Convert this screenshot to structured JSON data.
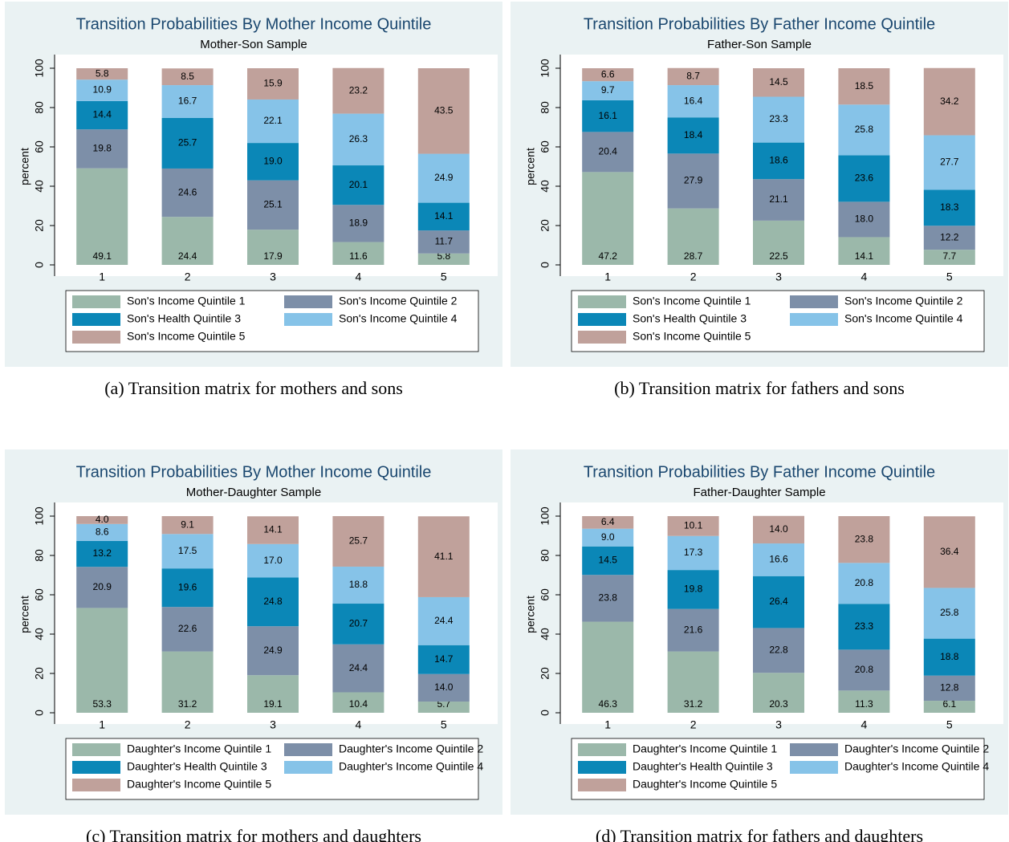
{
  "chart_data": [
    {
      "type": "bar",
      "title": "Transition Probabilities By Mother Income Quintile",
      "subtitle": "Mother-Son Sample",
      "ylabel": "percent",
      "caption": "(a) Transition matrix for mothers and sons",
      "categories": [
        "1",
        "2",
        "3",
        "4",
        "5"
      ],
      "ylim": [
        0,
        100
      ],
      "yticks": [
        0,
        20,
        40,
        60,
        80,
        100
      ],
      "stacked": true,
      "series": [
        {
          "name": "Son's Income Quintile 1",
          "color": "#9bb8aa",
          "values": [
            49.1,
            24.4,
            17.9,
            11.6,
            5.8
          ]
        },
        {
          "name": "Son's Income Quintile 2",
          "color": "#7d8fa8",
          "values": [
            19.8,
            24.6,
            25.1,
            18.9,
            11.7
          ]
        },
        {
          "name": "Son's Health Quintile 3",
          "color": "#0b87b7",
          "values": [
            14.4,
            25.7,
            19.0,
            20.1,
            14.1
          ],
          "value_labels": [
            "14.4",
            "25.7",
            "19.0",
            "20.1",
            "14.1"
          ]
        },
        {
          "name": "Son's Income Quintile 4",
          "color": "#86c3e8",
          "values": [
            10.9,
            16.7,
            22.1,
            26.3,
            24.9
          ]
        },
        {
          "name": "Son's Income Quintile 5",
          "color": "#c0a19b",
          "values": [
            5.8,
            8.5,
            15.9,
            23.2,
            43.5
          ]
        }
      ]
    },
    {
      "type": "bar",
      "title": "Transition Probabilities By Father Income Quintile",
      "subtitle": "Father-Son Sample",
      "ylabel": "percent",
      "caption": "(b) Transition matrix for fathers and sons",
      "categories": [
        "1",
        "2",
        "3",
        "4",
        "5"
      ],
      "ylim": [
        0,
        100
      ],
      "yticks": [
        0,
        20,
        40,
        60,
        80,
        100
      ],
      "stacked": true,
      "series": [
        {
          "name": "Son's Income Quintile 1",
          "color": "#9bb8aa",
          "values": [
            47.2,
            28.7,
            22.5,
            14.1,
            7.7
          ]
        },
        {
          "name": "Son's Income Quintile 2",
          "color": "#7d8fa8",
          "values": [
            20.4,
            27.9,
            21.1,
            18.0,
            12.2
          ],
          "value_labels": [
            "20.4",
            "27.9",
            "21.1",
            "18.0",
            "12.2"
          ]
        },
        {
          "name": "Son's Health Quintile 3",
          "color": "#0b87b7",
          "values": [
            16.1,
            18.4,
            18.6,
            23.6,
            18.3
          ]
        },
        {
          "name": "Son's Income Quintile 4",
          "color": "#86c3e8",
          "values": [
            9.7,
            16.4,
            23.3,
            25.8,
            27.7
          ]
        },
        {
          "name": "Son's Income Quintile 5",
          "color": "#c0a19b",
          "values": [
            6.6,
            8.7,
            14.5,
            18.5,
            34.2
          ]
        }
      ]
    },
    {
      "type": "bar",
      "title": "Transition Probabilities By Mother Income Quintile",
      "subtitle": "Mother-Daughter Sample",
      "ylabel": "percent",
      "caption": "(c) Transition matrix for mothers and daughters",
      "categories": [
        "1",
        "2",
        "3",
        "4",
        "5"
      ],
      "ylim": [
        0,
        100
      ],
      "yticks": [
        0,
        20,
        40,
        60,
        80,
        100
      ],
      "stacked": true,
      "series": [
        {
          "name": "Daughter's Income Quintile 1",
          "color": "#9bb8aa",
          "values": [
            53.3,
            31.2,
            19.1,
            10.4,
            5.7
          ]
        },
        {
          "name": "Daughter's Income Quintile 2",
          "color": "#7d8fa8",
          "values": [
            20.9,
            22.6,
            24.9,
            24.4,
            14.0
          ],
          "value_labels": [
            "20.9",
            "22.6",
            "24.9",
            "24.4",
            "14.0"
          ]
        },
        {
          "name": "Daughter's Health Quintile 3",
          "color": "#0b87b7",
          "values": [
            13.2,
            19.6,
            24.8,
            20.7,
            14.7
          ]
        },
        {
          "name": "Daughter's Income Quintile 4",
          "color": "#86c3e8",
          "values": [
            8.6,
            17.5,
            17.0,
            18.8,
            24.4
          ],
          "value_labels": [
            "8.6",
            "17.5",
            "17.0",
            "18.8",
            "24.4"
          ]
        },
        {
          "name": "Daughter's Income Quintile 5",
          "color": "#c0a19b",
          "values": [
            4.0,
            9.1,
            14.1,
            25.7,
            41.1
          ],
          "value_labels": [
            "4.0",
            "9.1",
            "14.1",
            "25.7",
            "41.1"
          ]
        }
      ]
    },
    {
      "type": "bar",
      "title": "Transition Probabilities By Father Income Quintile",
      "subtitle": "Father-Daughter Sample",
      "ylabel": "percent",
      "caption": "(d) Transition matrix for fathers and daughters",
      "categories": [
        "1",
        "2",
        "3",
        "4",
        "5"
      ],
      "ylim": [
        0,
        100
      ],
      "yticks": [
        0,
        20,
        40,
        60,
        80,
        100
      ],
      "stacked": true,
      "series": [
        {
          "name": "Daughter's Income Quintile 1",
          "color": "#9bb8aa",
          "values": [
            46.3,
            31.2,
            20.3,
            11.3,
            6.1
          ]
        },
        {
          "name": "Daughter's Income Quintile 2",
          "color": "#7d8fa8",
          "values": [
            23.8,
            21.6,
            22.8,
            20.8,
            12.8
          ]
        },
        {
          "name": "Daughter's Health Quintile 3",
          "color": "#0b87b7",
          "values": [
            14.5,
            19.8,
            26.4,
            23.3,
            18.8
          ]
        },
        {
          "name": "Daughter's Income Quintile 4",
          "color": "#86c3e8",
          "values": [
            9.0,
            17.3,
            16.6,
            20.8,
            25.8
          ],
          "value_labels": [
            "9.0",
            "17.3",
            "16.6",
            "20.8",
            "25.8"
          ]
        },
        {
          "name": "Daughter's Income Quintile 5",
          "color": "#c0a19b",
          "values": [
            6.4,
            10.1,
            14.0,
            23.8,
            36.4
          ],
          "value_labels": [
            "6.4",
            "10.1",
            "14.0",
            "23.8",
            "36.4"
          ]
        }
      ]
    }
  ]
}
